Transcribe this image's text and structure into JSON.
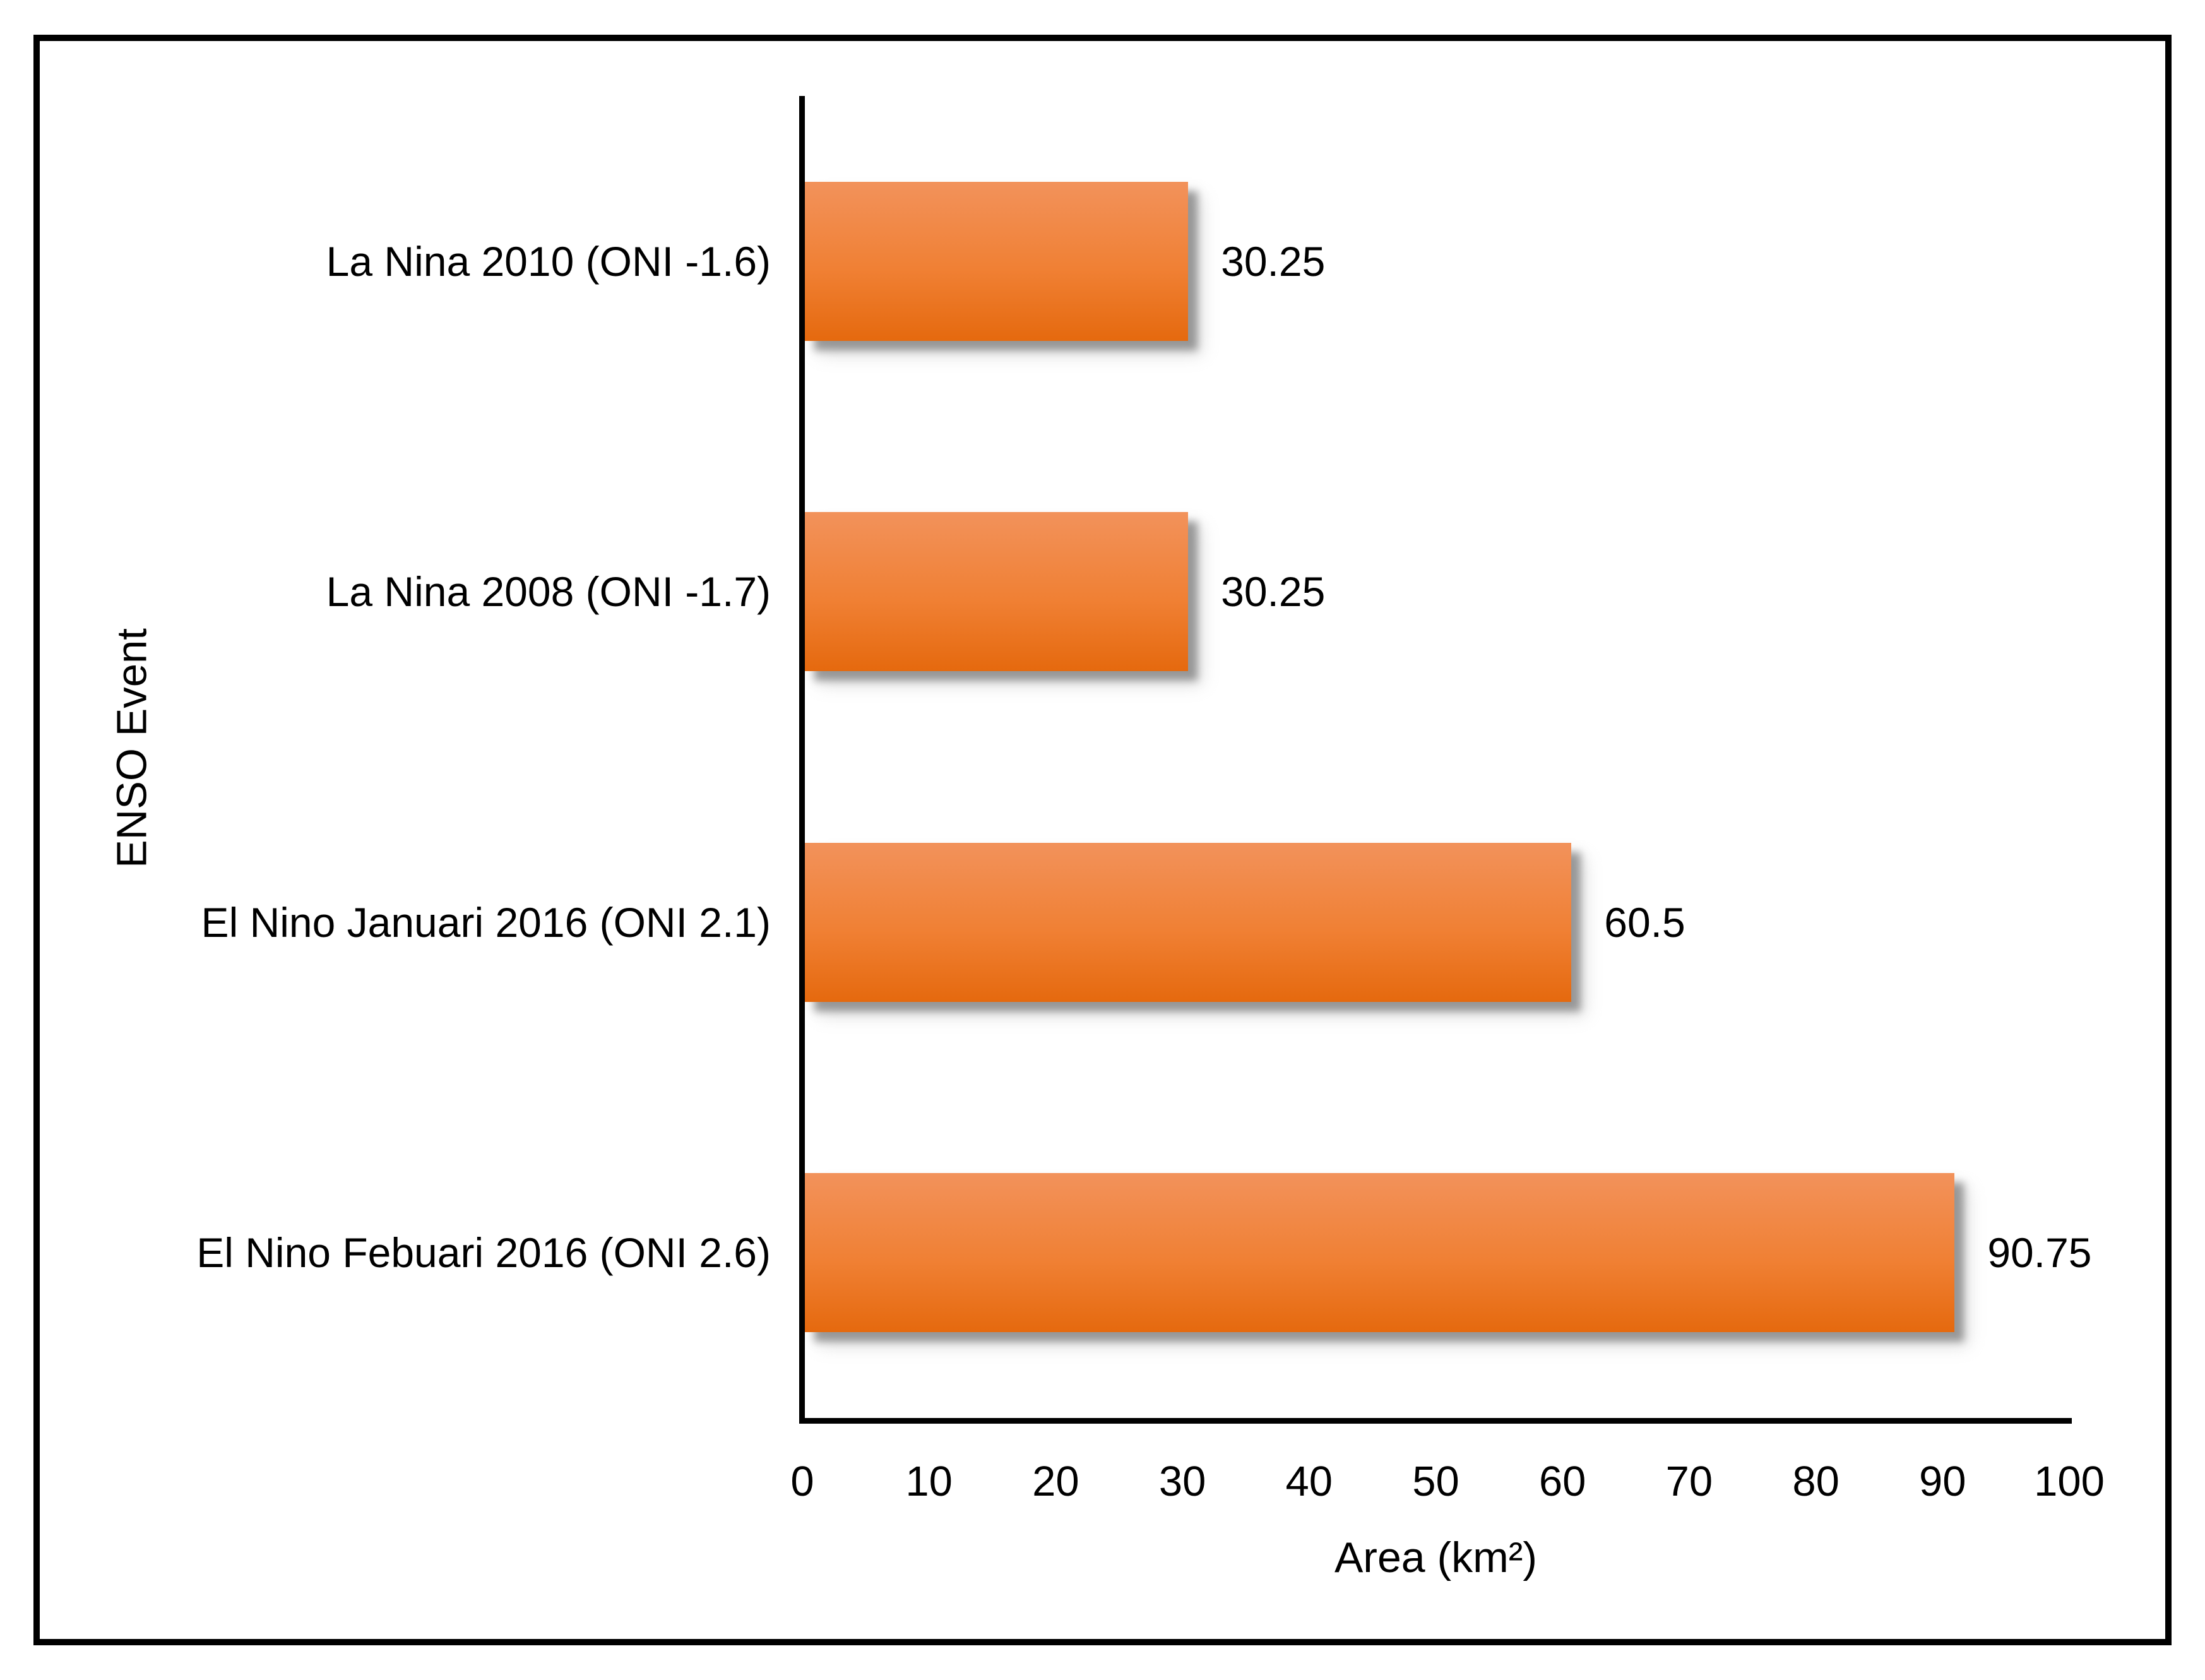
{
  "chart_data": {
    "type": "bar",
    "orientation": "horizontal",
    "title": "",
    "xlabel": "Area (km²)",
    "ylabel": "ENSO Event",
    "xlim": [
      0,
      100
    ],
    "x_ticks": [
      0,
      10,
      20,
      30,
      40,
      50,
      60,
      70,
      80,
      90,
      100
    ],
    "grid": false,
    "legend": false,
    "categories": [
      "La Nina 2010 (ONI -1.6)",
      "La Nina 2008 (ONI -1.7)",
      "El Nino Januari 2016 (ONI 2.1)",
      "El Nino Febuari 2016 (ONI 2.6)"
    ],
    "values": [
      30.25,
      30.25,
      60.5,
      90.75
    ],
    "data_labels": [
      "30.25",
      "30.25",
      "60.5",
      "90.75"
    ],
    "bar_color": "#ED7D31",
    "bar_color_top": "#F2925B",
    "bar_color_bottom": "#E5690E",
    "axis_color": "#000000",
    "text_color": "#000000",
    "frame_border_color": "#000000"
  }
}
